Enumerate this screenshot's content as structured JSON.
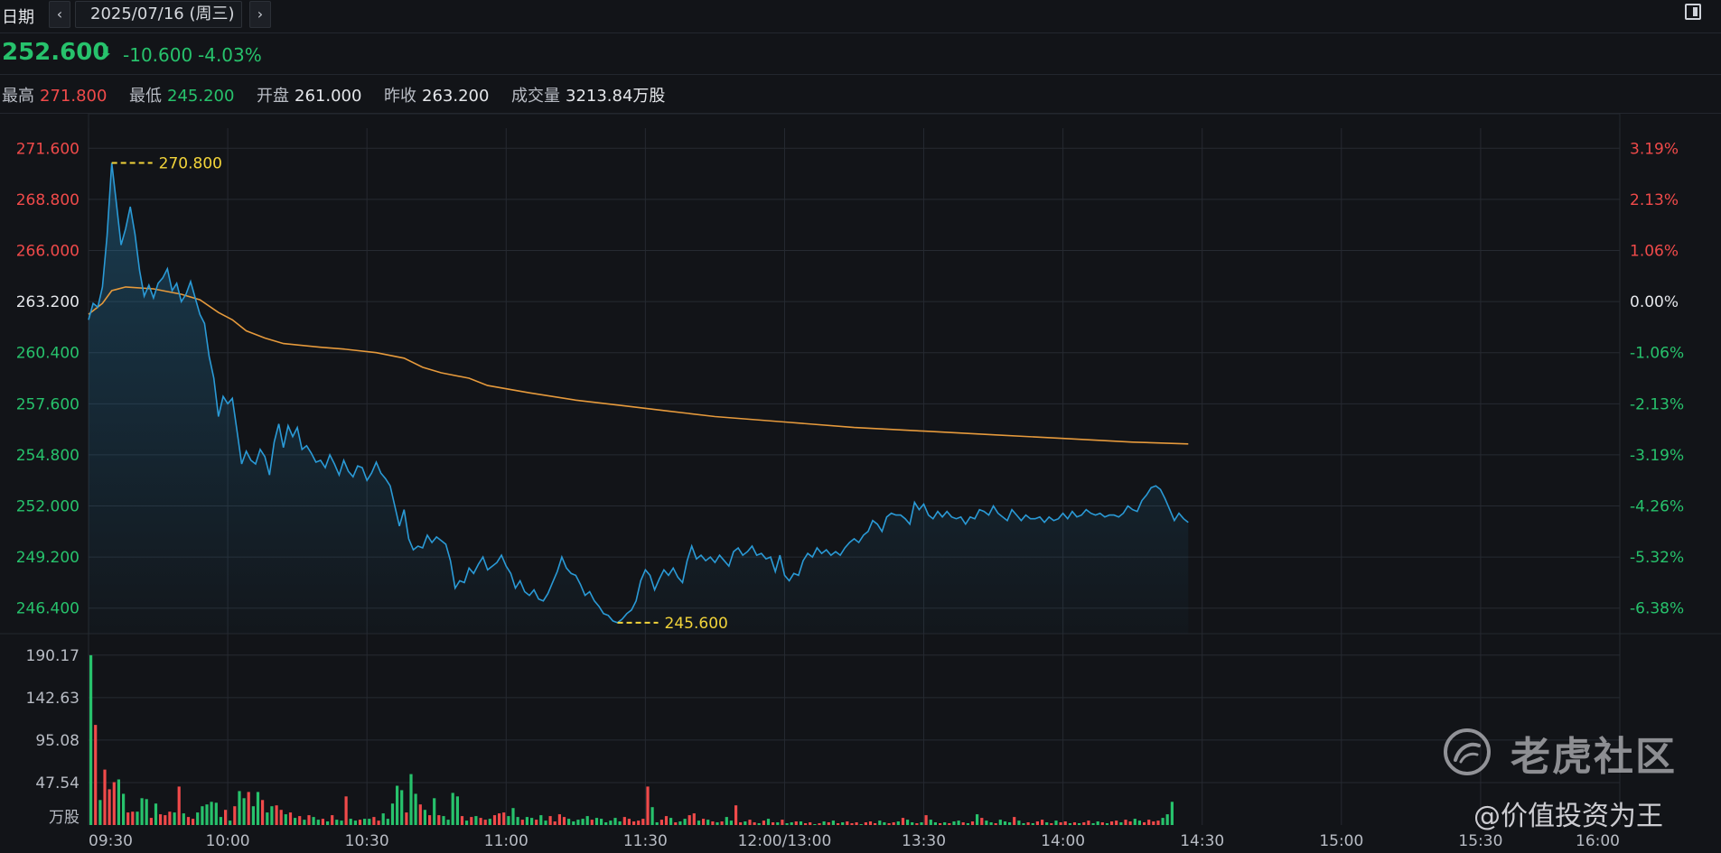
{
  "toolbar": {
    "date_label": "日期",
    "prev_icon": "chevron-left-icon",
    "next_icon": "chevron-right-icon",
    "date_value": "2025/07/16 (周三)",
    "layout_icon": "layout-toggle-icon"
  },
  "quote": {
    "last": "252.600",
    "direction_icon": "arrow-down-icon",
    "change": "-10.600",
    "change_pct": "-4.03%",
    "color_down": "#27c26c",
    "color_up": "#f04a4a"
  },
  "stats": {
    "high_label": "最高",
    "high": "271.800",
    "low_label": "最低",
    "low": "245.200",
    "open_label": "开盘",
    "open": "261.000",
    "prev_label": "昨收",
    "prev": "263.200",
    "vol_label": "成交量",
    "vol": "3213.84万股"
  },
  "chart_data": {
    "type": "line",
    "prev_close": 263.2,
    "ylim": [
      245.2,
      273.0
    ],
    "y_ticks_left": [
      "271.600",
      "268.800",
      "266.000",
      "263.200",
      "260.400",
      "257.600",
      "254.800",
      "252.000",
      "249.200",
      "246.400"
    ],
    "y_tick_values": [
      271.6,
      268.8,
      266.0,
      263.2,
      260.4,
      257.6,
      254.8,
      252.0,
      249.2,
      246.4
    ],
    "y_ticks_right": [
      "3.19%",
      "2.13%",
      "1.06%",
      "0.00%",
      "-1.06%",
      "-2.13%",
      "-3.19%",
      "-4.26%",
      "-5.32%",
      "-6.38%"
    ],
    "x_ticks": [
      "09:30",
      "10:00",
      "10:30",
      "11:00",
      "11:30",
      "12:00/13:00",
      "13:30",
      "14:00",
      "14:30",
      "15:00",
      "15:30",
      "16:00"
    ],
    "x_tick_minutes": [
      0,
      30,
      60,
      90,
      120,
      150,
      180,
      210,
      240,
      270,
      300,
      330
    ],
    "total_minutes": 330,
    "price_series": {
      "color": "#2a9ad6",
      "points": [
        [
          0,
          262.2
        ],
        [
          1,
          263.1
        ],
        [
          2,
          262.9
        ],
        [
          3,
          264.0
        ],
        [
          4,
          266.8
        ],
        [
          5,
          270.8
        ],
        [
          6,
          268.6
        ],
        [
          7,
          266.3
        ],
        [
          8,
          267.2
        ],
        [
          9,
          268.4
        ],
        [
          10,
          266.9
        ],
        [
          11,
          264.9
        ],
        [
          12,
          263.5
        ],
        [
          13,
          264.1
        ],
        [
          14,
          263.4
        ],
        [
          15,
          264.2
        ],
        [
          16,
          264.5
        ],
        [
          17,
          265.0
        ],
        [
          18,
          263.8
        ],
        [
          19,
          264.2
        ],
        [
          20,
          263.2
        ],
        [
          21,
          263.6
        ],
        [
          22,
          264.3
        ],
        [
          23,
          263.4
        ],
        [
          24,
          262.5
        ],
        [
          25,
          262.0
        ],
        [
          26,
          260.2
        ],
        [
          27,
          259.0
        ],
        [
          28,
          256.9
        ],
        [
          29,
          258.0
        ],
        [
          30,
          257.6
        ],
        [
          31,
          257.9
        ],
        [
          32,
          256.1
        ],
        [
          33,
          254.3
        ],
        [
          34,
          255.0
        ],
        [
          35,
          254.5
        ],
        [
          36,
          254.3
        ],
        [
          37,
          255.1
        ],
        [
          38,
          254.7
        ],
        [
          39,
          253.7
        ],
        [
          40,
          255.5
        ],
        [
          41,
          256.5
        ],
        [
          42,
          255.2
        ],
        [
          43,
          256.4
        ],
        [
          44,
          255.8
        ],
        [
          45,
          256.3
        ],
        [
          46,
          255.1
        ],
        [
          47,
          255.3
        ],
        [
          48,
          254.9
        ],
        [
          49,
          254.4
        ],
        [
          50,
          254.5
        ],
        [
          51,
          254.1
        ],
        [
          52,
          254.8
        ],
        [
          53,
          254.3
        ],
        [
          54,
          253.7
        ],
        [
          55,
          254.5
        ],
        [
          56,
          253.9
        ],
        [
          57,
          253.6
        ],
        [
          58,
          254.2
        ],
        [
          59,
          254.1
        ],
        [
          60,
          253.4
        ],
        [
          61,
          253.8
        ],
        [
          62,
          254.4
        ],
        [
          63,
          253.8
        ],
        [
          64,
          253.5
        ],
        [
          65,
          253.1
        ],
        [
          66,
          252.0
        ],
        [
          67,
          250.9
        ],
        [
          68,
          251.8
        ],
        [
          69,
          250.2
        ],
        [
          70,
          249.6
        ],
        [
          71,
          249.8
        ],
        [
          72,
          249.7
        ],
        [
          73,
          250.4
        ],
        [
          74,
          250.0
        ],
        [
          75,
          250.3
        ],
        [
          76,
          250.1
        ],
        [
          77,
          249.9
        ],
        [
          78,
          249.0
        ],
        [
          79,
          247.5
        ],
        [
          80,
          247.9
        ],
        [
          81,
          247.8
        ],
        [
          82,
          248.6
        ],
        [
          83,
          248.3
        ],
        [
          84,
          248.8
        ],
        [
          85,
          249.2
        ],
        [
          86,
          248.5
        ],
        [
          87,
          248.7
        ],
        [
          88,
          248.9
        ],
        [
          89,
          249.3
        ],
        [
          90,
          248.7
        ],
        [
          91,
          248.3
        ],
        [
          92,
          247.5
        ],
        [
          93,
          247.9
        ],
        [
          94,
          247.3
        ],
        [
          95,
          247.1
        ],
        [
          96,
          247.4
        ],
        [
          97,
          246.9
        ],
        [
          98,
          246.8
        ],
        [
          99,
          247.2
        ],
        [
          100,
          247.8
        ],
        [
          101,
          248.4
        ],
        [
          102,
          249.2
        ],
        [
          103,
          248.6
        ],
        [
          104,
          248.3
        ],
        [
          105,
          248.2
        ],
        [
          106,
          247.7
        ],
        [
          107,
          247.1
        ],
        [
          108,
          247.3
        ],
        [
          109,
          246.8
        ],
        [
          110,
          246.5
        ],
        [
          111,
          246.1
        ],
        [
          112,
          246.0
        ],
        [
          113,
          245.7
        ],
        [
          114,
          245.6
        ],
        [
          115,
          245.8
        ],
        [
          116,
          246.1
        ],
        [
          117,
          246.3
        ],
        [
          118,
          246.8
        ],
        [
          119,
          247.9
        ],
        [
          120,
          248.5
        ],
        [
          121,
          248.2
        ],
        [
          122,
          247.4
        ],
        [
          123,
          248.0
        ],
        [
          124,
          248.5
        ],
        [
          125,
          248.2
        ],
        [
          126,
          248.6
        ],
        [
          127,
          248.1
        ],
        [
          128,
          247.8
        ],
        [
          129,
          249.0
        ],
        [
          130,
          249.8
        ],
        [
          131,
          249.1
        ],
        [
          132,
          249.3
        ],
        [
          133,
          249.0
        ],
        [
          134,
          249.2
        ],
        [
          135,
          248.9
        ],
        [
          136,
          249.3
        ],
        [
          137,
          249.0
        ],
        [
          138,
          248.7
        ],
        [
          139,
          249.5
        ],
        [
          140,
          249.7
        ],
        [
          141,
          249.3
        ],
        [
          142,
          249.5
        ],
        [
          143,
          249.8
        ],
        [
          144,
          249.3
        ],
        [
          145,
          249.4
        ],
        [
          146,
          249.1
        ],
        [
          147,
          249.2
        ],
        [
          148,
          248.4
        ],
        [
          149,
          249.3
        ],
        [
          150,
          248.2
        ],
        [
          151,
          247.9
        ],
        [
          152,
          248.3
        ],
        [
          153,
          248.2
        ],
        [
          154,
          249.0
        ],
        [
          155,
          249.4
        ],
        [
          156,
          249.2
        ],
        [
          157,
          249.7
        ],
        [
          158,
          249.4
        ],
        [
          159,
          249.6
        ],
        [
          160,
          249.3
        ],
        [
          161,
          249.5
        ],
        [
          162,
          249.3
        ],
        [
          163,
          249.7
        ],
        [
          164,
          250.0
        ],
        [
          165,
          250.2
        ],
        [
          166,
          250.0
        ],
        [
          167,
          250.4
        ],
        [
          168,
          250.6
        ],
        [
          169,
          251.2
        ],
        [
          170,
          251.0
        ],
        [
          171,
          250.6
        ],
        [
          172,
          251.4
        ],
        [
          173,
          251.6
        ],
        [
          174,
          251.5
        ],
        [
          175,
          251.5
        ],
        [
          176,
          251.3
        ],
        [
          177,
          251.0
        ],
        [
          178,
          252.2
        ],
        [
          179,
          251.8
        ],
        [
          180,
          252.1
        ],
        [
          181,
          251.5
        ],
        [
          182,
          251.3
        ],
        [
          183,
          251.7
        ],
        [
          184,
          251.4
        ],
        [
          185,
          251.7
        ],
        [
          186,
          251.4
        ],
        [
          187,
          251.3
        ],
        [
          188,
          251.4
        ],
        [
          189,
          251.0
        ],
        [
          190,
          251.4
        ],
        [
          191,
          251.3
        ],
        [
          192,
          251.8
        ],
        [
          193,
          251.7
        ],
        [
          194,
          251.5
        ],
        [
          195,
          252.0
        ],
        [
          196,
          251.6
        ],
        [
          197,
          251.4
        ],
        [
          198,
          251.2
        ],
        [
          199,
          251.8
        ],
        [
          200,
          251.5
        ],
        [
          201,
          251.2
        ],
        [
          202,
          251.5
        ],
        [
          203,
          251.3
        ],
        [
          204,
          251.3
        ],
        [
          205,
          251.4
        ],
        [
          206,
          251.1
        ],
        [
          207,
          251.4
        ],
        [
          208,
          251.2
        ],
        [
          209,
          251.3
        ],
        [
          210,
          251.6
        ],
        [
          211,
          251.3
        ],
        [
          212,
          251.7
        ],
        [
          213,
          251.4
        ],
        [
          214,
          251.5
        ],
        [
          215,
          251.8
        ],
        [
          216,
          251.6
        ],
        [
          217,
          251.5
        ],
        [
          218,
          251.6
        ],
        [
          219,
          251.4
        ],
        [
          220,
          251.5
        ],
        [
          221,
          251.5
        ],
        [
          222,
          251.4
        ],
        [
          223,
          251.6
        ],
        [
          224,
          252.0
        ],
        [
          225,
          251.8
        ],
        [
          226,
          251.7
        ],
        [
          227,
          252.3
        ],
        [
          228,
          252.6
        ],
        [
          229,
          253.0
        ],
        [
          230,
          253.1
        ],
        [
          231,
          252.9
        ],
        [
          232,
          252.4
        ],
        [
          233,
          251.8
        ],
        [
          234,
          251.2
        ],
        [
          235,
          251.6
        ],
        [
          236,
          251.3
        ],
        [
          237,
          251.1
        ]
      ]
    },
    "avg_series": {
      "color": "#e69a3c",
      "points": [
        [
          0,
          262.5
        ],
        [
          3,
          263.1
        ],
        [
          5,
          263.8
        ],
        [
          8,
          264.0
        ],
        [
          14,
          263.9
        ],
        [
          20,
          263.6
        ],
        [
          24,
          263.3
        ],
        [
          28,
          262.6
        ],
        [
          31,
          262.2
        ],
        [
          34,
          261.6
        ],
        [
          38,
          261.2
        ],
        [
          42,
          260.9
        ],
        [
          50,
          260.7
        ],
        [
          55,
          260.6
        ],
        [
          62,
          260.4
        ],
        [
          68,
          260.1
        ],
        [
          72,
          259.6
        ],
        [
          76,
          259.3
        ],
        [
          82,
          259.0
        ],
        [
          86,
          258.6
        ],
        [
          95,
          258.2
        ],
        [
          105,
          257.8
        ],
        [
          115,
          257.5
        ],
        [
          125,
          257.2
        ],
        [
          135,
          256.9
        ],
        [
          150,
          256.6
        ],
        [
          165,
          256.3
        ],
        [
          180,
          256.1
        ],
        [
          195,
          255.9
        ],
        [
          210,
          255.7
        ],
        [
          225,
          255.5
        ],
        [
          237,
          255.4
        ]
      ]
    },
    "max_marker": {
      "minute": 5,
      "value": 270.8,
      "label": "270.800"
    },
    "min_marker": {
      "minute": 114,
      "value": 245.6,
      "label": "245.600"
    },
    "volume": {
      "unit": "万股",
      "y_ticks": [
        "190.17",
        "142.63",
        "95.08",
        "47.54"
      ],
      "y_tick_values": [
        190.17,
        142.63,
        95.08,
        47.54
      ],
      "ymax": 195,
      "values": [
        190.0,
        112.0,
        28.0,
        62.0,
        40.0,
        48.0,
        51.0,
        35.0,
        14.0,
        15.0,
        15.0,
        30.0,
        29.0,
        8.0,
        24.0,
        12.0,
        11.0,
        15.0,
        14.0,
        43.0,
        13.0,
        9.0,
        7.0,
        14.0,
        21.0,
        23.0,
        26.0,
        25.0,
        9.0,
        17.0,
        5.0,
        21.0,
        38.0,
        30.0,
        37.0,
        21.0,
        37.0,
        28.0,
        14.0,
        21.0,
        22.0,
        17.0,
        12.0,
        14.0,
        8.0,
        10.0,
        6.0,
        11.0,
        9.0,
        6.0,
        7.0,
        4.0,
        11.0,
        6.0,
        5.0,
        32.0,
        7.0,
        5.0,
        6.0,
        7.0,
        7.0,
        9.0,
        5.0,
        13.0,
        7.0,
        24.0,
        44.0,
        39.0,
        14.0,
        57.0,
        35.0,
        23.0,
        17.0,
        11.0,
        30.0,
        11.0,
        10.0,
        6.0,
        36.0,
        32.0,
        10.0,
        5.0,
        9.0,
        10.0,
        8.0,
        6.0,
        7.0,
        11.0,
        13.0,
        14.0,
        10.0,
        19.0,
        9.0,
        6.0,
        9.0,
        8.0,
        6.0,
        11.0,
        5.0,
        10.0,
        4.0,
        12.0,
        9.0,
        7.0,
        4.0,
        6.0,
        7.0,
        10.0,
        6.0,
        8.0,
        7.0,
        3.0,
        5.0,
        8.0,
        4.0,
        9.0,
        7.0,
        4.0,
        5.0,
        7.0,
        43.0,
        20.0,
        3.0,
        6.0,
        10.0,
        8.0,
        3.0,
        4.0,
        7.0,
        11.0,
        13.0,
        5.0,
        7.0,
        6.0,
        4.0,
        3.0,
        4.0,
        9.0,
        5.0,
        22.0,
        3.0,
        4.0,
        6.0,
        3.0,
        2.0,
        5.0,
        7.0,
        3.0,
        3.0,
        6.0,
        2.0,
        3.0,
        4.0,
        4.0,
        2.0,
        3.0,
        1.0,
        2.0,
        4.0,
        3.0,
        5.0,
        2.0,
        3.0,
        4.0,
        2.0,
        3.0,
        1.0,
        3.0,
        4.0,
        2.0,
        5.0,
        3.0,
        2.0,
        3.0,
        4.0,
        8.0,
        6.0,
        3.0,
        2.0,
        3.0,
        11.0,
        6.0,
        3.0,
        2.0,
        3.0,
        2.0,
        4.0,
        5.0,
        3.0,
        2.0,
        4.0,
        12.0,
        8.0,
        5.0,
        3.0,
        2.0,
        6.0,
        4.0,
        3.0,
        9.0,
        5.0,
        2.0,
        3.0,
        2.0,
        4.0,
        6.0,
        3.0,
        2.0,
        5.0,
        3.0,
        4.0,
        2.0,
        3.0,
        2.0,
        3.0,
        5.0,
        2.0,
        4.0,
        3.0,
        2.0,
        4.0,
        5.0,
        3.0,
        6.0,
        4.0,
        7.0,
        5.0,
        3.0,
        6.0,
        4.0,
        5.0,
        8.0,
        12.0,
        26.0
      ],
      "up_color": "#f04a4a",
      "down_color": "#27c26c"
    },
    "grid": true
  },
  "watermark": {
    "logo_icon": "tiger-logo-icon",
    "brand": "老虎社区",
    "author": "@价值投资为王"
  }
}
